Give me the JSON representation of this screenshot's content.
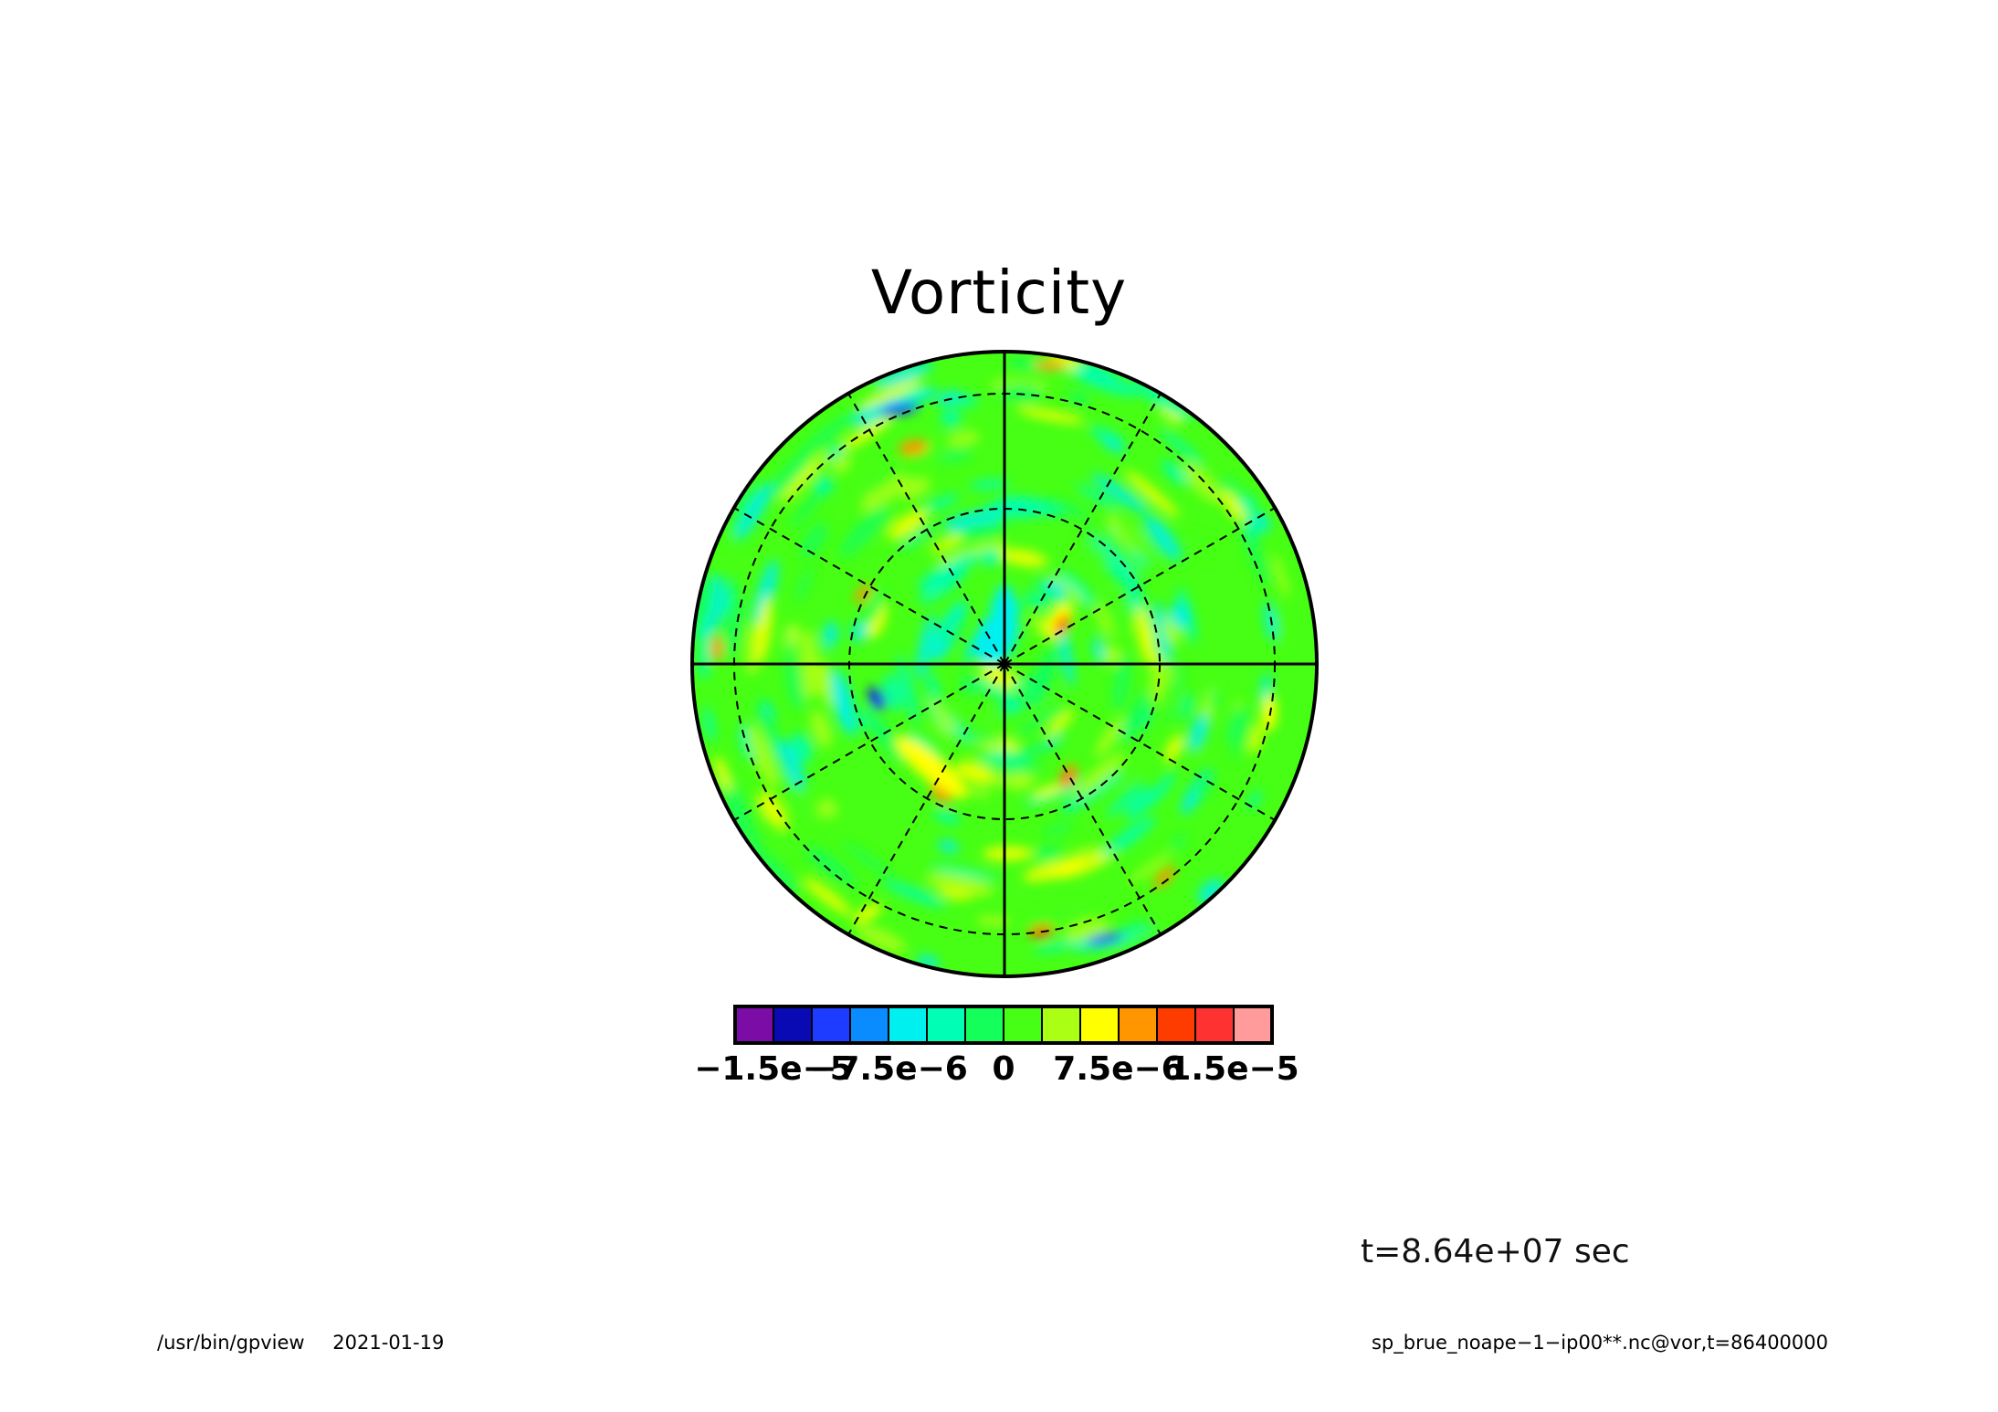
{
  "chart_data": {
    "type": "heatmap",
    "projection": "polar stereographic",
    "title": "Vorticity",
    "grid": true,
    "levels": [
      -1.5e-05,
      -7.5e-06,
      0,
      7.5e-06,
      1.5e-05
    ],
    "colorbar": {
      "colors": [
        "#7b0ca6",
        "#0a0ab4",
        "#1e3cff",
        "#0a8cff",
        "#00f0f0",
        "#00ffb4",
        "#14ff5a",
        "#46ff14",
        "#aaff14",
        "#ffff00",
        "#ff9600",
        "#ff3c00",
        "#ff3232",
        "#ff9b9b"
      ],
      "tick_labels": [
        "−1.5e−5",
        "−7.5e−6",
        "0",
        "7.5e−6",
        "1.5e−5"
      ]
    },
    "dominant_value_range": "near zero (green)",
    "hotspots": [
      {
        "region": "near pole, right of center",
        "sign": "positive",
        "color": "yellow"
      },
      {
        "region": "lower-center ring",
        "sign": "positive",
        "color": "red"
      },
      {
        "region": "left of pole",
        "sign": "negative",
        "color": "blue"
      },
      {
        "region": "around pole",
        "sign": "negative",
        "color": "cyan"
      }
    ]
  },
  "annotation": {
    "time": "t=8.64e+07 sec"
  },
  "footer": {
    "program": "/usr/bin/gpview",
    "date": "2021-01-19",
    "source": "sp_brue_noape−1−ip00**.nc@vor,t=86400000"
  },
  "colors": {
    "background": "#ffffff",
    "dominant": "#46ff14"
  }
}
